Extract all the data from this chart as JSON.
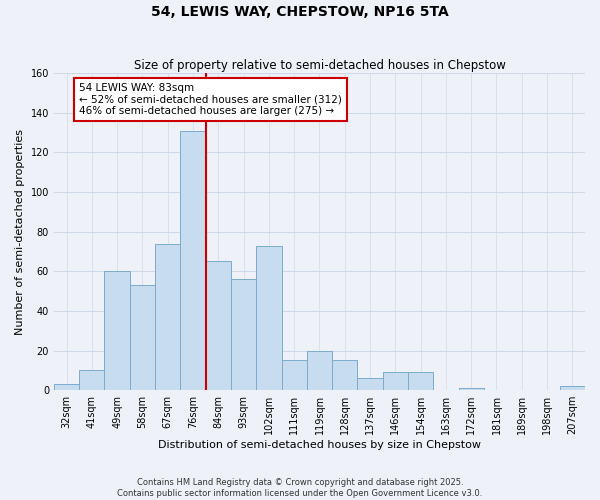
{
  "title": "54, LEWIS WAY, CHEPSTOW, NP16 5TA",
  "subtitle": "Size of property relative to semi-detached houses in Chepstow",
  "xlabel": "Distribution of semi-detached houses by size in Chepstow",
  "ylabel": "Number of semi-detached properties",
  "categories": [
    "32sqm",
    "41sqm",
    "49sqm",
    "58sqm",
    "67sqm",
    "76sqm",
    "84sqm",
    "93sqm",
    "102sqm",
    "111sqm",
    "119sqm",
    "128sqm",
    "137sqm",
    "146sqm",
    "154sqm",
    "163sqm",
    "172sqm",
    "181sqm",
    "189sqm",
    "198sqm",
    "207sqm"
  ],
  "values": [
    3,
    10,
    60,
    53,
    74,
    131,
    65,
    56,
    73,
    15,
    20,
    15,
    6,
    9,
    9,
    0,
    1,
    0,
    0,
    0,
    2
  ],
  "bar_color": "#c8dcef",
  "bar_edge_color": "#7aacce",
  "vline_x": 5.5,
  "vline_color": "#cc0000",
  "annotation_line1": "54 LEWIS WAY: 83sqm",
  "annotation_line2": "← 52% of semi-detached houses are smaller (312)",
  "annotation_line3": "46% of semi-detached houses are larger (275) →",
  "annotation_box_color": "#ffffff",
  "annotation_box_edge": "#cc0000",
  "ylim": [
    0,
    160
  ],
  "yticks": [
    0,
    20,
    40,
    60,
    80,
    100,
    120,
    140,
    160
  ],
  "footer_line1": "Contains HM Land Registry data © Crown copyright and database right 2025.",
  "footer_line2": "Contains public sector information licensed under the Open Government Licence v3.0.",
  "background_color": "#eef2f8",
  "grid_color": "#d0d8e8",
  "title_fontsize": 10,
  "subtitle_fontsize": 8.5,
  "axis_label_fontsize": 8,
  "tick_fontsize": 7,
  "annotation_fontsize": 7.5,
  "footer_fontsize": 6
}
